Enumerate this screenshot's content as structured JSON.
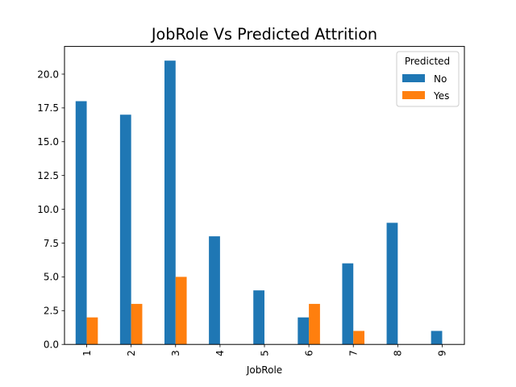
{
  "chart_data": {
    "type": "bar",
    "title": "JobRole Vs Predicted Attrition",
    "xlabel": "JobRole",
    "ylabel": "",
    "categories": [
      "1",
      "2",
      "3",
      "4",
      "5",
      "6",
      "7",
      "8",
      "9"
    ],
    "series": [
      {
        "name": "No",
        "color": "#1f77b4",
        "values": [
          18,
          17,
          21,
          8,
          4,
          2,
          6,
          9,
          1
        ]
      },
      {
        "name": "Yes",
        "color": "#ff7f0e",
        "values": [
          2,
          3,
          5,
          0,
          0,
          3,
          1,
          0,
          0
        ]
      }
    ],
    "yticks": [
      "0.0",
      "2.5",
      "5.0",
      "7.5",
      "10.0",
      "12.5",
      "15.0",
      "17.5",
      "20.0"
    ],
    "ylim": [
      0,
      22.05
    ],
    "legend": {
      "title": "Predicted",
      "position": "top-right"
    },
    "grid": false
  }
}
